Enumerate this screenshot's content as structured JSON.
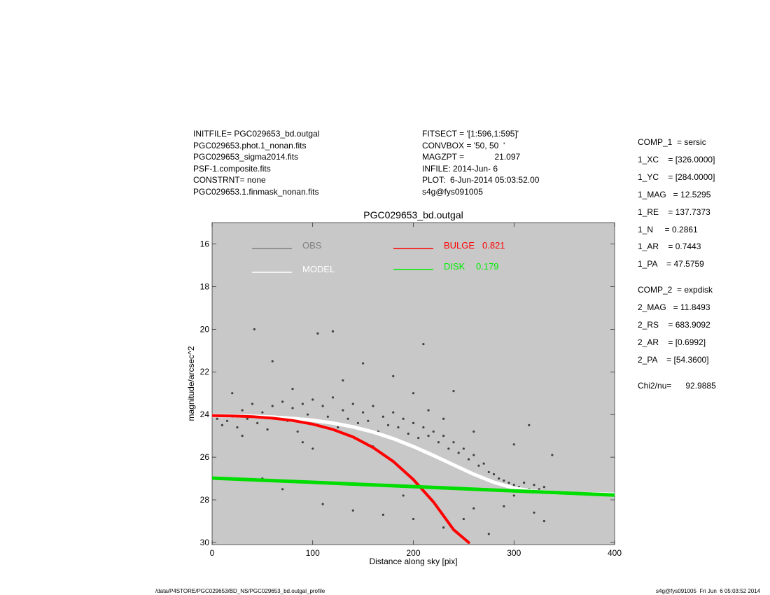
{
  "header_left": [
    "INITFILE= PGC029653_bd.outgal",
    "PGC029653.phot.1_nonan.fits",
    "PGC029653_sigma2014.fits",
    "PSF-1.composite.fits",
    "CONSTRNT= none",
    "PGC029653.1.finmask_nonan.fits"
  ],
  "header_mid": [
    "FITSECT = '[1:596,1:595]'",
    "CONVBOX = '50, 50  '",
    "MAGZPT =             21.097",
    "INFILE: 2014-Jun- 6",
    "PLOT:  6-Jun-2014 05:03:52.00",
    "s4g@fys091005"
  ],
  "params": [
    {
      "text": "COMP_1  = sersic",
      "gap": false
    },
    {
      "text": "1_XC    = [326.0000]",
      "gap": false
    },
    {
      "text": "1_YC    = [284.0000]",
      "gap": false
    },
    {
      "text": "1_MAG   = 12.5295",
      "gap": false
    },
    {
      "text": "1_RE    = 137.7373",
      "gap": false
    },
    {
      "text": "1_N     = 0.2861",
      "gap": false
    },
    {
      "text": "1_AR    = 0.7443",
      "gap": false
    },
    {
      "text": "1_PA    = 47.5759",
      "gap": false
    },
    {
      "text": "COMP_2  = expdisk",
      "gap": true
    },
    {
      "text": "2_MAG   = 11.8493",
      "gap": false
    },
    {
      "text": "2_RS    = 683.9092",
      "gap": false
    },
    {
      "text": "2_AR    = [0.6992]",
      "gap": false
    },
    {
      "text": "2_PA    = [54.3600]",
      "gap": false
    },
    {
      "text": "Chi2/nu=      92.9885",
      "gap": true
    }
  ],
  "footer_left": "/data/P4STORE/PGC029653/BD_NS/PGC029653_bd.outgal_profile",
  "footer_right": "s4g@fys091005  Fri Jun  6 05:03:52 2014",
  "chart_data": {
    "type": "scatter",
    "title": "PGC029653_bd.outgal",
    "xlabel": "Distance along sky [pix]",
    "ylabel": "magnitude/arcsec^2",
    "xlim": [
      0,
      400
    ],
    "ylim": [
      30,
      15
    ],
    "xticks": [
      0,
      100,
      200,
      300,
      400
    ],
    "yticks": [
      16,
      18,
      20,
      22,
      24,
      26,
      28,
      30
    ],
    "background": "#c8c8c8",
    "legend": [
      {
        "label": "OBS",
        "value": "",
        "color": "#808080"
      },
      {
        "label": "MODEL",
        "value": "",
        "color": "#ffffff"
      },
      {
        "label": "BULGE",
        "value": "0.821",
        "color": "#ff0000"
      },
      {
        "label": "DISK",
        "value": "0.179",
        "color": "#00ee00"
      }
    ],
    "series": [
      {
        "name": "OBS",
        "color": "#404040",
        "points": [
          [
            5,
            24.2
          ],
          [
            10,
            24.5
          ],
          [
            15,
            24.3
          ],
          [
            20,
            24.1
          ],
          [
            25,
            24.6
          ],
          [
            30,
            23.8
          ],
          [
            35,
            24.2
          ],
          [
            40,
            23.5
          ],
          [
            45,
            24.4
          ],
          [
            50,
            23.9
          ],
          [
            55,
            24.7
          ],
          [
            60,
            23.6
          ],
          [
            65,
            24.1
          ],
          [
            70,
            23.4
          ],
          [
            75,
            24.3
          ],
          [
            80,
            23.7
          ],
          [
            85,
            24.8
          ],
          [
            90,
            23.5
          ],
          [
            95,
            24.0
          ],
          [
            100,
            23.3
          ],
          [
            105,
            24.5
          ],
          [
            110,
            23.6
          ],
          [
            115,
            24.1
          ],
          [
            120,
            23.2
          ],
          [
            125,
            24.6
          ],
          [
            130,
            23.8
          ],
          [
            135,
            24.2
          ],
          [
            140,
            23.5
          ],
          [
            145,
            24.4
          ],
          [
            150,
            23.9
          ],
          [
            155,
            24.3
          ],
          [
            160,
            23.6
          ],
          [
            165,
            24.8
          ],
          [
            170,
            24.1
          ],
          [
            175,
            24.5
          ],
          [
            180,
            23.9
          ],
          [
            185,
            24.6
          ],
          [
            190,
            24.2
          ],
          [
            195,
            24.9
          ],
          [
            200,
            24.4
          ],
          [
            205,
            25.1
          ],
          [
            210,
            24.6
          ],
          [
            215,
            25.0
          ],
          [
            220,
            24.8
          ],
          [
            225,
            25.3
          ],
          [
            230,
            25.0
          ],
          [
            235,
            25.6
          ],
          [
            240,
            25.3
          ],
          [
            245,
            25.8
          ],
          [
            250,
            25.6
          ],
          [
            255,
            26.1
          ],
          [
            260,
            25.9
          ],
          [
            265,
            26.4
          ],
          [
            270,
            26.3
          ],
          [
            275,
            26.7
          ],
          [
            280,
            26.8
          ],
          [
            285,
            27.0
          ],
          [
            290,
            27.1
          ],
          [
            295,
            27.2
          ],
          [
            300,
            27.3
          ],
          [
            305,
            27.4
          ],
          [
            310,
            27.2
          ],
          [
            315,
            27.5
          ],
          [
            320,
            27.3
          ],
          [
            325,
            27.5
          ],
          [
            330,
            27.4
          ],
          [
            338,
            25.9
          ],
          [
            42,
            20.0
          ],
          [
            105,
            20.2
          ],
          [
            120,
            20.1
          ],
          [
            210,
            20.7
          ],
          [
            60,
            21.5
          ],
          [
            150,
            21.6
          ],
          [
            80,
            22.8
          ],
          [
            130,
            22.4
          ],
          [
            180,
            22.2
          ],
          [
            240,
            22.9
          ],
          [
            30,
            25.0
          ],
          [
            90,
            25.3
          ],
          [
            160,
            25.5
          ],
          [
            50,
            27.0
          ],
          [
            70,
            27.5
          ],
          [
            110,
            28.2
          ],
          [
            140,
            28.5
          ],
          [
            170,
            28.7
          ],
          [
            200,
            28.9
          ],
          [
            230,
            29.3
          ],
          [
            260,
            28.4
          ],
          [
            290,
            28.3
          ],
          [
            300,
            27.8
          ],
          [
            320,
            28.6
          ],
          [
            330,
            29.0
          ],
          [
            20,
            23.0
          ],
          [
            100,
            25.6
          ],
          [
            190,
            27.8
          ],
          [
            250,
            28.9
          ],
          [
            275,
            29.6
          ],
          [
            315,
            24.5
          ],
          [
            200,
            23.0
          ],
          [
            215,
            23.8
          ],
          [
            230,
            24.2
          ],
          [
            260,
            24.8
          ],
          [
            300,
            25.4
          ]
        ]
      },
      {
        "name": "MODEL",
        "color": "#ffffff",
        "points": [
          [
            0,
            24.05
          ],
          [
            20,
            24.06
          ],
          [
            40,
            24.08
          ],
          [
            60,
            24.12
          ],
          [
            80,
            24.18
          ],
          [
            100,
            24.27
          ],
          [
            120,
            24.4
          ],
          [
            140,
            24.58
          ],
          [
            160,
            24.82
          ],
          [
            180,
            25.13
          ],
          [
            200,
            25.5
          ],
          [
            220,
            25.92
          ],
          [
            240,
            26.36
          ],
          [
            260,
            26.8
          ],
          [
            280,
            27.18
          ],
          [
            300,
            27.45
          ],
          [
            320,
            27.6
          ],
          [
            340,
            27.66
          ],
          [
            360,
            27.7
          ],
          [
            380,
            27.72
          ],
          [
            400,
            27.74
          ]
        ]
      },
      {
        "name": "BULGE",
        "color": "#ff0000",
        "points": [
          [
            0,
            24.05
          ],
          [
            20,
            24.07
          ],
          [
            40,
            24.1
          ],
          [
            60,
            24.17
          ],
          [
            80,
            24.28
          ],
          [
            100,
            24.45
          ],
          [
            120,
            24.7
          ],
          [
            140,
            25.05
          ],
          [
            160,
            25.55
          ],
          [
            180,
            26.2
          ],
          [
            200,
            27.05
          ],
          [
            220,
            28.1
          ],
          [
            240,
            29.4
          ],
          [
            255,
            30.0
          ]
        ]
      },
      {
        "name": "DISK",
        "color": "#00dd00",
        "points": [
          [
            0,
            26.98
          ],
          [
            50,
            27.08
          ],
          [
            100,
            27.18
          ],
          [
            150,
            27.28
          ],
          [
            200,
            27.38
          ],
          [
            250,
            27.48
          ],
          [
            300,
            27.58
          ],
          [
            350,
            27.68
          ],
          [
            400,
            27.78
          ]
        ]
      }
    ]
  }
}
